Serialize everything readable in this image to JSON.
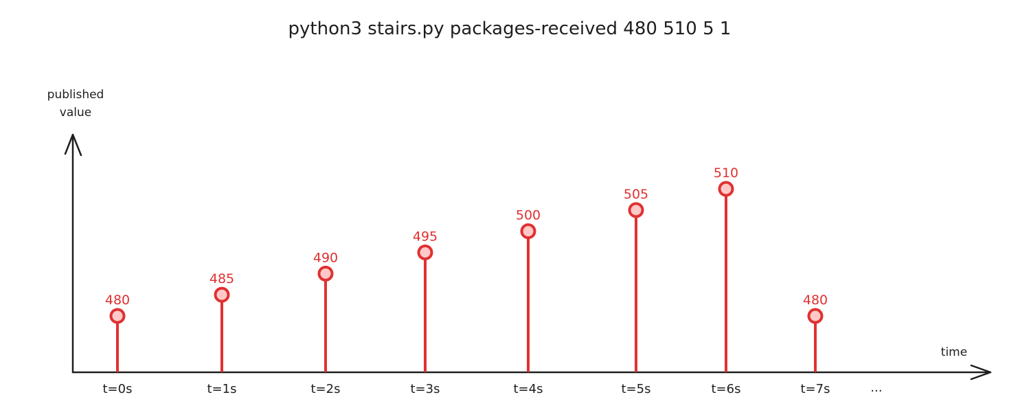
{
  "chart_data": {
    "type": "stem",
    "title": "python3 stairs.py packages-received 480 510 5 1",
    "xlabel": "time",
    "ylabel_lines": [
      "published",
      "value"
    ],
    "categories": [
      "t=0s",
      "t=1s",
      "t=2s",
      "t=3s",
      "t=4s",
      "t=5s",
      "t=6s",
      "t=7s"
    ],
    "values": [
      480,
      485,
      490,
      495,
      500,
      505,
      510,
      480
    ],
    "continuation": "...",
    "grid": false,
    "colors": {
      "series": "#e03131",
      "marker_fill": "#ffc9c9",
      "axis": "#1e1e1e"
    }
  }
}
